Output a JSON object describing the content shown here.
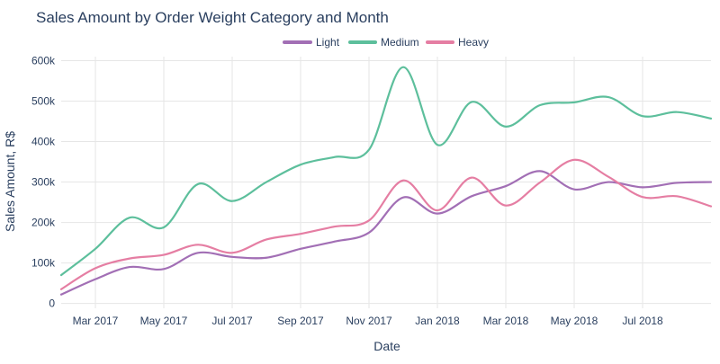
{
  "chart_data": {
    "type": "line",
    "title": "Sales Amount by Order Weight Category and Month",
    "xlabel": "Date",
    "ylabel": "Sales Amount, R$",
    "ylim": [
      -12000,
      610000
    ],
    "y_ticks": [
      0,
      100000,
      200000,
      300000,
      400000,
      500000,
      600000
    ],
    "y_tick_labels": [
      "0",
      "100k",
      "200k",
      "300k",
      "400k",
      "500k",
      "600k"
    ],
    "x_range_months": [
      0.0,
      19.0
    ],
    "x_ticks": [
      {
        "month_index": 1,
        "label": "Mar 2017"
      },
      {
        "month_index": 3,
        "label": "May 2017"
      },
      {
        "month_index": 5,
        "label": "Jul 2017"
      },
      {
        "month_index": 7,
        "label": "Sep 2017"
      },
      {
        "month_index": 9,
        "label": "Nov 2017"
      },
      {
        "month_index": 11,
        "label": "Jan 2018"
      },
      {
        "month_index": 13,
        "label": "Mar 2018"
      },
      {
        "month_index": 15,
        "label": "May 2018"
      },
      {
        "month_index": 17,
        "label": "Jul 2018"
      }
    ],
    "x_month_index": [
      0,
      1,
      2,
      3,
      4,
      5,
      6,
      7,
      8,
      9,
      10,
      11,
      12,
      13,
      14,
      15,
      16,
      17,
      18,
      19
    ],
    "dates": [
      "2017-02",
      "2017-03",
      "2017-04",
      "2017-05",
      "2017-06",
      "2017-07",
      "2017-08",
      "2017-09",
      "2017-10",
      "2017-11",
      "2017-12",
      "2018-01",
      "2018-02",
      "2018-03",
      "2018-04",
      "2018-05",
      "2018-06",
      "2018-07",
      "2018-08",
      "2018-09"
    ],
    "series": [
      {
        "name": "Light",
        "color": "#a26fb5",
        "values": [
          22000,
          60000,
          90000,
          85000,
          125000,
          115000,
          113000,
          135000,
          153000,
          175000,
          262000,
          222000,
          265000,
          290000,
          327000,
          282000,
          300000,
          287000,
          298000,
          300000
        ]
      },
      {
        "name": "Medium",
        "color": "#5dbf9c",
        "values": [
          70000,
          135000,
          212000,
          188000,
          295000,
          253000,
          300000,
          343000,
          362000,
          380000,
          584000,
          392000,
          498000,
          437000,
          490000,
          497000,
          510000,
          463000,
          473000,
          457000
        ]
      },
      {
        "name": "Heavy",
        "color": "#e57ea3",
        "values": [
          35000,
          87000,
          111000,
          120000,
          145000,
          125000,
          158000,
          172000,
          190000,
          205000,
          304000,
          230000,
          311000,
          242000,
          299000,
          355000,
          313000,
          263000,
          265000,
          240000
        ]
      }
    ],
    "legend_position": "top-center"
  }
}
